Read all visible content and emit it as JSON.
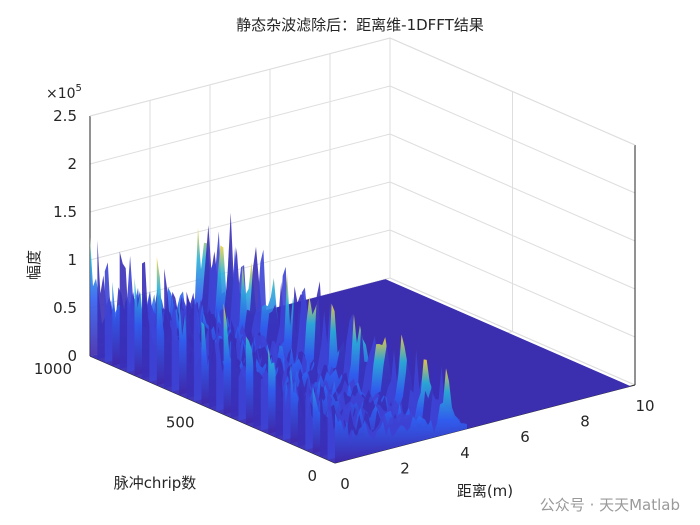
{
  "chart_data": {
    "type": "surface",
    "title": "静态杂波滤除后：距离维-1DFFT结果",
    "xlabel": "距离(m)",
    "ylabel": "脉冲chrip数",
    "zlabel": "幅度",
    "exponent_label": "×10",
    "exponent_power": "5",
    "xlim": [
      0,
      10
    ],
    "ylim": [
      0,
      1000
    ],
    "zlim": [
      0,
      250000
    ],
    "x_ticks": [
      0,
      2,
      4,
      6,
      8,
      10
    ],
    "y_ticks": [
      0,
      500,
      1000
    ],
    "z_ticks": [
      0,
      0.5,
      1,
      1.5,
      2,
      2.5
    ],
    "grid": true,
    "colormap": "parula",
    "peaks": [
      {
        "x": 0.0,
        "z": 160000
      },
      {
        "x": 0.1,
        "z": 130000
      },
      {
        "x": 3.7,
        "z": 142000
      },
      {
        "x": 3.8,
        "z": 122000
      },
      {
        "x": 3.9,
        "z": 88000
      }
    ],
    "colors": {
      "low": "#3e26a8",
      "mid": "#2ab0d8",
      "high": "#f9d43a"
    }
  },
  "watermark": "公众号 · 天天Matlab"
}
